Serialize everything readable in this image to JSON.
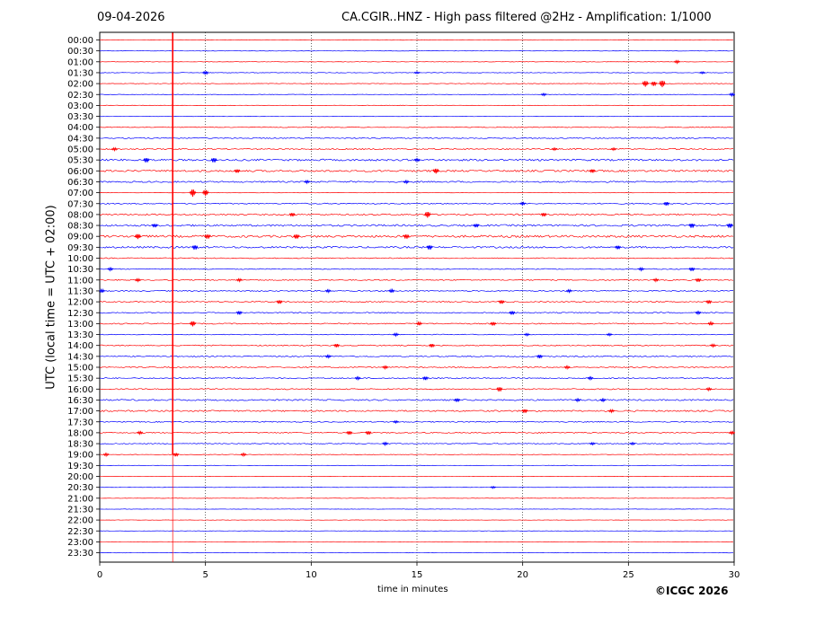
{
  "header": {
    "date": "09-04-2026",
    "title": "CA.CGIR..HNZ - High pass filtered @2Hz - Amplification: 1/1000"
  },
  "footer": {
    "copyright": "©ICGC 2026"
  },
  "chart_data": {
    "type": "line",
    "title": "CA.CGIR..HNZ - High pass filtered @2Hz - Amplification: 1/1000",
    "xlabel": "time in minutes",
    "ylabel": "UTC (local time = UTC + 02:00)",
    "xlim": [
      0,
      30
    ],
    "x_ticks": [
      "0",
      "5",
      "10",
      "15",
      "20",
      "25",
      "30"
    ],
    "grid": "vertical dotted every 5 minutes",
    "colors": {
      "red": "#ff0000",
      "blue": "#0000ff"
    },
    "rows": [
      {
        "label": "00:00",
        "color": "red",
        "noise": 0.25,
        "events": []
      },
      {
        "label": "00:30",
        "color": "blue",
        "noise": 0.25,
        "events": []
      },
      {
        "label": "01:00",
        "color": "red",
        "noise": 0.25,
        "events": [
          {
            "t": 27.3,
            "a": 1.5
          }
        ]
      },
      {
        "label": "01:30",
        "color": "blue",
        "noise": 0.3,
        "events": [
          {
            "t": 5.0,
            "a": 2.0
          },
          {
            "t": 15.0,
            "a": 1.0
          },
          {
            "t": 28.5,
            "a": 1.0
          }
        ]
      },
      {
        "label": "02:00",
        "color": "red",
        "noise": 0.3,
        "events": [
          {
            "t": 25.8,
            "a": 3.5
          },
          {
            "t": 26.2,
            "a": 2.5
          },
          {
            "t": 26.6,
            "a": 4.0
          }
        ]
      },
      {
        "label": "02:30",
        "color": "blue",
        "noise": 0.3,
        "events": [
          {
            "t": 21.0,
            "a": 1.2
          },
          {
            "t": 29.9,
            "a": 1.5
          }
        ]
      },
      {
        "label": "03:00",
        "color": "red",
        "noise": 0.25,
        "events": []
      },
      {
        "label": "03:30",
        "color": "blue",
        "noise": 0.25,
        "events": []
      },
      {
        "label": "04:00",
        "color": "red",
        "noise": 0.45,
        "events": []
      },
      {
        "label": "04:30",
        "color": "blue",
        "noise": 0.6,
        "events": []
      },
      {
        "label": "05:00",
        "color": "red",
        "noise": 0.7,
        "events": [
          {
            "t": 0.7,
            "a": 1.5
          },
          {
            "t": 21.5,
            "a": 1.2
          },
          {
            "t": 24.3,
            "a": 1.2
          }
        ]
      },
      {
        "label": "05:30",
        "color": "blue",
        "noise": 1.0,
        "events": [
          {
            "t": 2.2,
            "a": 2.5
          },
          {
            "t": 5.4,
            "a": 2.5
          },
          {
            "t": 15.0,
            "a": 1.5
          }
        ]
      },
      {
        "label": "06:00",
        "color": "red",
        "noise": 1.0,
        "events": [
          {
            "t": 6.5,
            "a": 2.0
          },
          {
            "t": 15.9,
            "a": 3.0
          },
          {
            "t": 23.3,
            "a": 2.0
          }
        ]
      },
      {
        "label": "06:30",
        "color": "blue",
        "noise": 0.8,
        "events": [
          {
            "t": 9.8,
            "a": 1.5
          },
          {
            "t": 14.5,
            "a": 1.5
          }
        ]
      },
      {
        "label": "07:00",
        "color": "red",
        "noise": 0.2,
        "events": [
          {
            "t": 4.4,
            "a": 4.5
          },
          {
            "t": 5.0,
            "a": 3.5
          }
        ]
      },
      {
        "label": "07:30",
        "color": "blue",
        "noise": 0.6,
        "events": [
          {
            "t": 20.0,
            "a": 1.5
          },
          {
            "t": 26.8,
            "a": 2.0
          }
        ]
      },
      {
        "label": "08:00",
        "color": "red",
        "noise": 0.8,
        "events": [
          {
            "t": 9.1,
            "a": 2.0
          },
          {
            "t": 15.5,
            "a": 3.5
          },
          {
            "t": 21.0,
            "a": 2.0
          }
        ]
      },
      {
        "label": "08:30",
        "color": "blue",
        "noise": 1.0,
        "events": [
          {
            "t": 2.6,
            "a": 2.0
          },
          {
            "t": 17.8,
            "a": 2.0
          },
          {
            "t": 28.0,
            "a": 2.5
          },
          {
            "t": 29.8,
            "a": 2.5
          }
        ]
      },
      {
        "label": "09:00",
        "color": "red",
        "noise": 1.2,
        "events": [
          {
            "t": 1.8,
            "a": 3.0
          },
          {
            "t": 5.1,
            "a": 2.5
          },
          {
            "t": 9.3,
            "a": 2.5
          },
          {
            "t": 14.5,
            "a": 2.5
          }
        ]
      },
      {
        "label": "09:30",
        "color": "blue",
        "noise": 1.0,
        "events": [
          {
            "t": 4.5,
            "a": 2.5
          },
          {
            "t": 15.6,
            "a": 2.5
          },
          {
            "t": 24.5,
            "a": 2.0
          }
        ]
      },
      {
        "label": "10:00",
        "color": "red",
        "noise": 0.5,
        "events": []
      },
      {
        "label": "10:30",
        "color": "blue",
        "noise": 0.5,
        "events": [
          {
            "t": 0.5,
            "a": 1.5
          },
          {
            "t": 25.6,
            "a": 1.5
          },
          {
            "t": 28.0,
            "a": 2.0
          }
        ]
      },
      {
        "label": "11:00",
        "color": "red",
        "noise": 0.6,
        "events": [
          {
            "t": 1.8,
            "a": 1.5
          },
          {
            "t": 6.6,
            "a": 1.5
          },
          {
            "t": 26.3,
            "a": 1.5
          },
          {
            "t": 28.3,
            "a": 2.0
          }
        ]
      },
      {
        "label": "11:30",
        "color": "blue",
        "noise": 0.6,
        "events": [
          {
            "t": 0.1,
            "a": 1.8
          },
          {
            "t": 10.8,
            "a": 1.5
          },
          {
            "t": 13.8,
            "a": 1.8
          },
          {
            "t": 22.2,
            "a": 1.5
          }
        ]
      },
      {
        "label": "12:00",
        "color": "red",
        "noise": 0.6,
        "events": [
          {
            "t": 8.5,
            "a": 2.0
          },
          {
            "t": 19.0,
            "a": 2.0
          },
          {
            "t": 28.8,
            "a": 2.0
          }
        ]
      },
      {
        "label": "12:30",
        "color": "blue",
        "noise": 0.6,
        "events": [
          {
            "t": 6.6,
            "a": 2.0
          },
          {
            "t": 19.5,
            "a": 2.0
          },
          {
            "t": 28.3,
            "a": 1.5
          }
        ]
      },
      {
        "label": "13:00",
        "color": "red",
        "noise": 0.6,
        "events": [
          {
            "t": 4.4,
            "a": 3.0
          },
          {
            "t": 15.1,
            "a": 1.8
          },
          {
            "t": 18.6,
            "a": 2.0
          },
          {
            "t": 28.9,
            "a": 1.8
          }
        ]
      },
      {
        "label": "13:30",
        "color": "blue",
        "noise": 0.4,
        "events": [
          {
            "t": 14.0,
            "a": 1.5
          },
          {
            "t": 20.2,
            "a": 1.2
          },
          {
            "t": 24.1,
            "a": 1.2
          }
        ]
      },
      {
        "label": "14:00",
        "color": "red",
        "noise": 0.6,
        "events": [
          {
            "t": 11.2,
            "a": 2.0
          },
          {
            "t": 15.7,
            "a": 2.0
          },
          {
            "t": 29.0,
            "a": 1.5
          }
        ]
      },
      {
        "label": "14:30",
        "color": "blue",
        "noise": 0.6,
        "events": [
          {
            "t": 10.8,
            "a": 1.5
          },
          {
            "t": 20.8,
            "a": 2.0
          }
        ]
      },
      {
        "label": "15:00",
        "color": "red",
        "noise": 0.6,
        "events": [
          {
            "t": 13.5,
            "a": 1.5
          },
          {
            "t": 22.1,
            "a": 1.5
          }
        ]
      },
      {
        "label": "15:30",
        "color": "blue",
        "noise": 0.6,
        "events": [
          {
            "t": 12.2,
            "a": 1.5
          },
          {
            "t": 15.4,
            "a": 2.0
          },
          {
            "t": 23.2,
            "a": 1.5
          }
        ]
      },
      {
        "label": "16:00",
        "color": "red",
        "noise": 0.6,
        "events": [
          {
            "t": 18.9,
            "a": 2.5
          },
          {
            "t": 28.8,
            "a": 1.5
          }
        ]
      },
      {
        "label": "16:30",
        "color": "blue",
        "noise": 0.8,
        "events": [
          {
            "t": 16.9,
            "a": 2.0
          },
          {
            "t": 22.6,
            "a": 1.5
          },
          {
            "t": 23.8,
            "a": 1.5
          }
        ]
      },
      {
        "label": "17:00",
        "color": "red",
        "noise": 0.8,
        "events": [
          {
            "t": 20.1,
            "a": 2.0
          },
          {
            "t": 24.2,
            "a": 1.5
          }
        ]
      },
      {
        "label": "17:30",
        "color": "blue",
        "noise": 0.6,
        "events": [
          {
            "t": 14.0,
            "a": 1.2
          }
        ]
      },
      {
        "label": "18:00",
        "color": "red",
        "noise": 0.6,
        "events": [
          {
            "t": 1.9,
            "a": 1.5
          },
          {
            "t": 11.8,
            "a": 2.0
          },
          {
            "t": 12.7,
            "a": 2.0
          },
          {
            "t": 29.9,
            "a": 1.5
          }
        ]
      },
      {
        "label": "18:30",
        "color": "blue",
        "noise": 0.5,
        "events": [
          {
            "t": 13.5,
            "a": 1.5
          },
          {
            "t": 23.3,
            "a": 1.2
          },
          {
            "t": 25.2,
            "a": 1.2
          }
        ]
      },
      {
        "label": "19:00",
        "color": "red",
        "noise": 0.3,
        "events": [
          {
            "t": 0.3,
            "a": 1.5
          },
          {
            "t": 3.6,
            "a": 2.0
          },
          {
            "t": 6.8,
            "a": 1.5
          }
        ]
      },
      {
        "label": "19:30",
        "color": "blue",
        "noise": 0.2,
        "events": []
      },
      {
        "label": "20:00",
        "color": "red",
        "noise": 0.2,
        "events": []
      },
      {
        "label": "20:30",
        "color": "blue",
        "noise": 0.2,
        "events": [
          {
            "t": 18.6,
            "a": 1.0
          }
        ]
      },
      {
        "label": "21:00",
        "color": "red",
        "noise": 0.2,
        "events": []
      },
      {
        "label": "21:30",
        "color": "blue",
        "noise": 0.2,
        "events": []
      },
      {
        "label": "22:00",
        "color": "red",
        "noise": 0.2,
        "events": []
      },
      {
        "label": "22:30",
        "color": "blue",
        "noise": 0.2,
        "events": []
      },
      {
        "label": "23:00",
        "color": "red",
        "noise": 0.2,
        "events": []
      },
      {
        "label": "23:30",
        "color": "blue",
        "noise": 0.2,
        "events": []
      }
    ],
    "annotations": {
      "vertical_trace": {
        "t": 3.45,
        "from_row": "00:00",
        "to_row": "19:00",
        "color": "red"
      }
    }
  }
}
